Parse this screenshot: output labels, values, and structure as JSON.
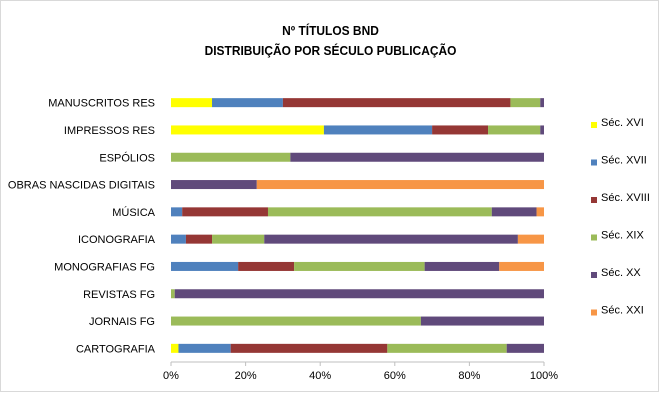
{
  "chart_data": {
    "type": "bar",
    "stacked": "100%",
    "orientation": "horizontal",
    "title": "Nº TÍTULOS BND",
    "subtitle": "DISTRIBUIÇÃO POR SÉCULO PUBLICAÇÃO",
    "categories": [
      "MANUSCRITOS RES",
      "IMPRESSOS RES",
      "ESPÓLIOS",
      "OBRAS NASCIDAS DIGITAIS",
      "MÚSICA",
      "ICONOGRAFIA",
      "MONOGRAFIAS FG",
      "REVISTAS FG",
      "JORNAIS FG",
      "CARTOGRAFIA"
    ],
    "series": [
      {
        "name": "Séc. XVI",
        "color": "#ffff00",
        "values": [
          11,
          41,
          0,
          0,
          0,
          0,
          0,
          0,
          0,
          2
        ]
      },
      {
        "name": "Séc. XVII",
        "color": "#4f81bd",
        "values": [
          19,
          29,
          0,
          0,
          3,
          4,
          18,
          0,
          0,
          14
        ]
      },
      {
        "name": "Séc. XVIII",
        "color": "#953735",
        "values": [
          61,
          15,
          0,
          0,
          23,
          7,
          15,
          0,
          0,
          42
        ]
      },
      {
        "name": "Séc. XIX",
        "color": "#9bbb59",
        "values": [
          8,
          14,
          32,
          0,
          60,
          14,
          35,
          1,
          67,
          32
        ]
      },
      {
        "name": "Séc. XX",
        "color": "#604a7b",
        "values": [
          1,
          1,
          68,
          23,
          12,
          68,
          20,
          99,
          33,
          10
        ]
      },
      {
        "name": "Séc. XXI",
        "color": "#f79646",
        "values": [
          0,
          0,
          0,
          77,
          2,
          7,
          12,
          0,
          0,
          0
        ]
      }
    ],
    "xlim": [
      0,
      100
    ],
    "x_ticks": [
      "0%",
      "20%",
      "40%",
      "60%",
      "80%",
      "100%"
    ],
    "grid": false,
    "legend_position": "right"
  }
}
